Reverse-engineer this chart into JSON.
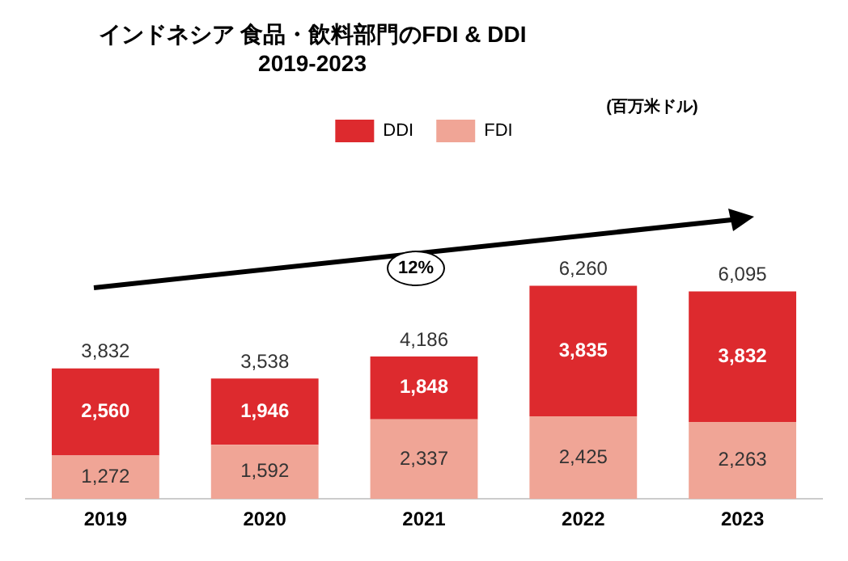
{
  "chart_data": {
    "type": "bar",
    "title": "インドネシア 食品・飲料部門のFDI & DDI\n2019-2023",
    "stacked": true,
    "categories": [
      "2019",
      "2020",
      "2021",
      "2022",
      "2023"
    ],
    "series": [
      {
        "name": "FDI",
        "color": "#f0a596",
        "values": [
          1272,
          1592,
          2337,
          2425,
          2263
        ],
        "value_labels": [
          "1,272",
          "1,592",
          "2,337",
          "2,425",
          "2,263"
        ]
      },
      {
        "name": "DDI",
        "color": "#dd2a2e",
        "values": [
          2560,
          1946,
          1848,
          3835,
          3832
        ],
        "value_labels": [
          "2,560",
          "1,946",
          "1,848",
          "3,835",
          "3,832"
        ]
      }
    ],
    "totals": [
      "3,832",
      "3,538",
      "4,186",
      "6,260",
      "6,095"
    ],
    "legend": "top",
    "grid": false,
    "tick_labels": "x",
    "annotations": [
      "(百万米ドル)",
      "12%"
    ]
  }
}
